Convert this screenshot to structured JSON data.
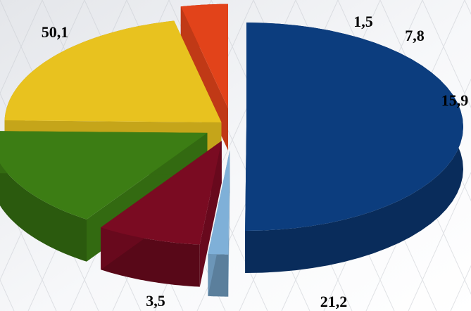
{
  "chart_data": {
    "type": "pie",
    "style": "3d-exploded",
    "categories": [
      "",
      "",
      "",
      "",
      "",
      ""
    ],
    "values": [
      50.1,
      1.5,
      7.8,
      15.9,
      21.2,
      3.5
    ],
    "labels": [
      "50,1",
      "1,5",
      "7,8",
      "15,9",
      "21,2",
      "3,5"
    ],
    "colors": [
      "#0c3d7e",
      "#7fb0d8",
      "#7a0b22",
      "#3c7d14",
      "#e8c21f",
      "#e2431a"
    ],
    "legend": "none",
    "background": "light grey diagonal line pattern"
  }
}
